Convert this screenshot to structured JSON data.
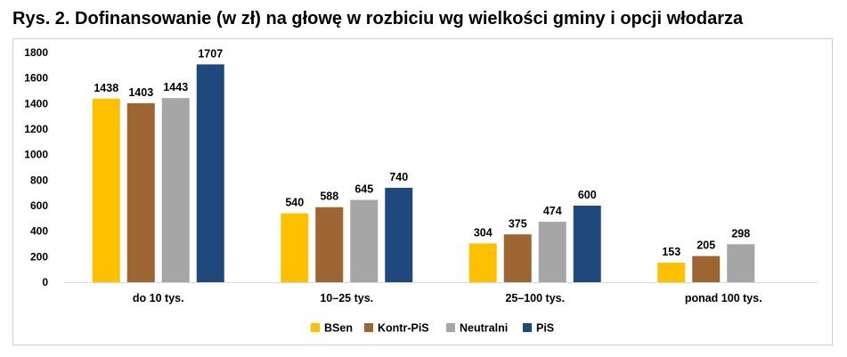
{
  "title": "Rys. 2. Dofinansowanie (w zł) na głowę w rozbiciu wg wielkości gminy i opcji włodarza",
  "chart_data": {
    "type": "bar",
    "title": "Rys. 2. Dofinansowanie (w zł) na głowę w rozbiciu wg wielkości gminy i opcji włodarza",
    "xlabel": "",
    "ylabel": "",
    "ylim": [
      0,
      1800
    ],
    "yticks": [
      0,
      200,
      400,
      600,
      800,
      1000,
      1200,
      1400,
      1600,
      1800
    ],
    "grid": false,
    "legend_position": "bottom",
    "categories": [
      "do 10 tys.",
      "10–25 tys.",
      "25–100 tys.",
      "ponad 100 tys."
    ],
    "series": [
      {
        "name": "BSen",
        "color": "#FFC000",
        "values": [
          1438,
          540,
          304,
          153
        ]
      },
      {
        "name": "Kontr-PiS",
        "color": "#9C6531",
        "values": [
          1403,
          588,
          375,
          205
        ]
      },
      {
        "name": "Neutralni",
        "color": "#A6A6A6",
        "values": [
          1443,
          645,
          474,
          298
        ]
      },
      {
        "name": "PiS",
        "color": "#1F497D",
        "values": [
          1707,
          740,
          600,
          null
        ]
      }
    ]
  }
}
